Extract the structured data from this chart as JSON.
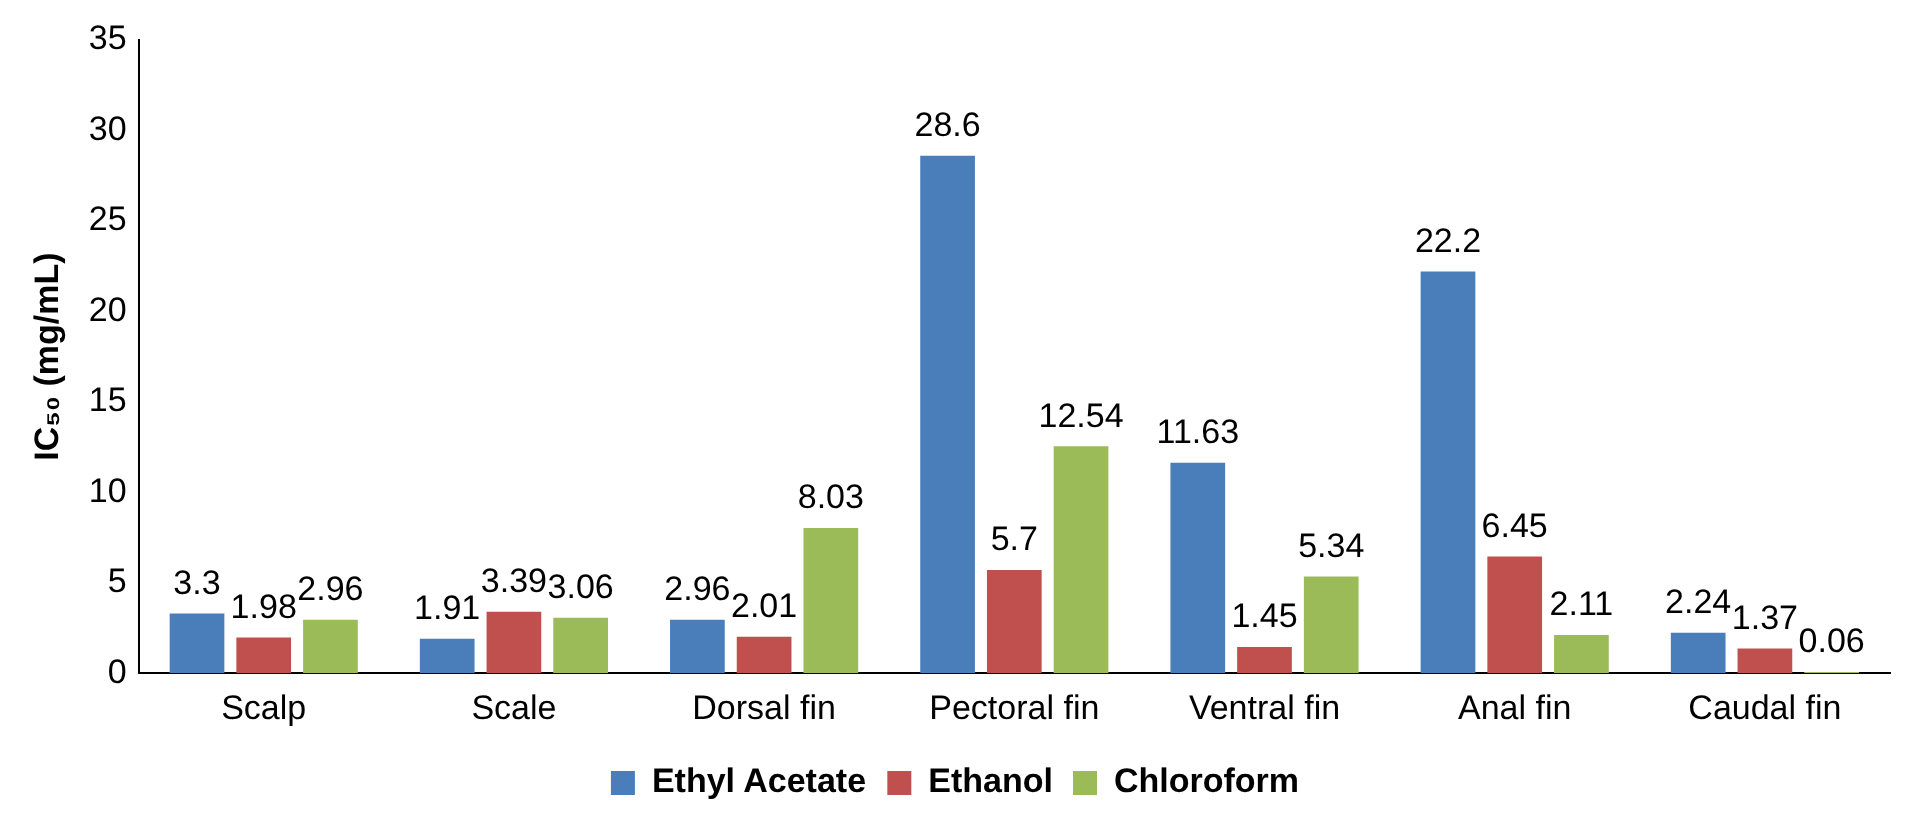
{
  "chart_data": {
    "type": "bar",
    "ylabel": "IC₅₀ (mg/mL)",
    "categories": [
      "Scalp",
      "Scale",
      "Dorsal fin",
      "Pectoral fin",
      "Ventral fin",
      "Anal fin",
      "Caudal fin"
    ],
    "series": [
      {
        "name": "Ethyl Acetate",
        "color": "#4a7ebb",
        "values": [
          3.3,
          1.91,
          2.96,
          28.6,
          11.63,
          22.2,
          2.24
        ]
      },
      {
        "name": "Ethanol",
        "color": "#c0504d",
        "values": [
          1.98,
          3.39,
          2.01,
          5.7,
          1.45,
          6.45,
          1.37
        ]
      },
      {
        "name": "Chloroform",
        "color": "#9bbb59",
        "values": [
          2.96,
          3.06,
          8.03,
          12.54,
          5.34,
          2.11,
          0.06
        ]
      }
    ],
    "ylim": [
      0,
      35
    ],
    "yticks": [
      0,
      5,
      10,
      15,
      20,
      25,
      30,
      35
    ],
    "grid": false,
    "legend": "bottom",
    "data_labels": true
  }
}
